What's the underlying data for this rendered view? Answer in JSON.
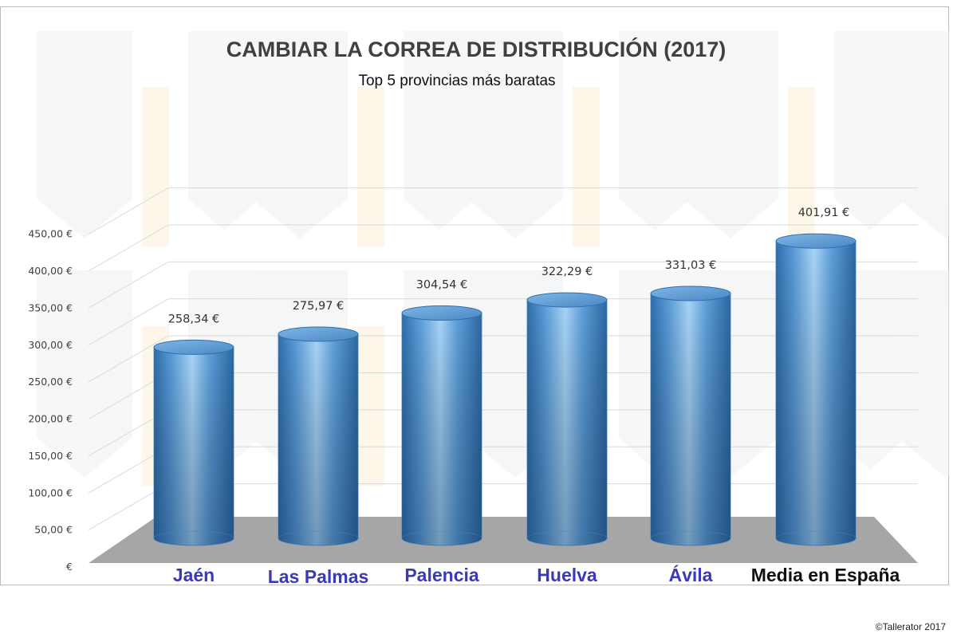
{
  "chart_data": {
    "type": "bar",
    "style": "3d-cylinder",
    "title": "CAMBIAR LA CORREA DE DISTRIBUCIÓN (2017)",
    "subtitle": "Top 5 provincias más baratas",
    "categories": [
      "Jaén",
      "Las Palmas",
      "Palencia",
      "Huelva",
      "Ávila",
      "Media en España"
    ],
    "values": [
      258.34,
      275.97,
      304.54,
      322.29,
      331.03,
      401.91
    ],
    "data_labels": [
      "258,34 €",
      "275,97 €",
      "304,54 €",
      "322,29 €",
      "331,03 €",
      "401,91 €"
    ],
    "ylim": [
      0,
      450
    ],
    "y_ticks": [
      0,
      50,
      100,
      150,
      200,
      250,
      300,
      350,
      400,
      450
    ],
    "y_tick_labels": [
      "€",
      "50,00 €",
      "100,00 €",
      "150,00 €",
      "200,00 €",
      "250,00 €",
      "300,00 €",
      "350,00 €",
      "400,00 €",
      "450,00 €"
    ],
    "grid": true,
    "colors": {
      "bar": "#5b9bd5",
      "bar_dark": "#2e6da4",
      "bar_light": "#a9d4f5",
      "floor": "#a6a6a6",
      "gridline": "#d9d9d9",
      "category_label": "#3a3ab8",
      "highlight_label": "#111111"
    }
  },
  "footer": {
    "copyright": "©Tallerator 2017"
  }
}
